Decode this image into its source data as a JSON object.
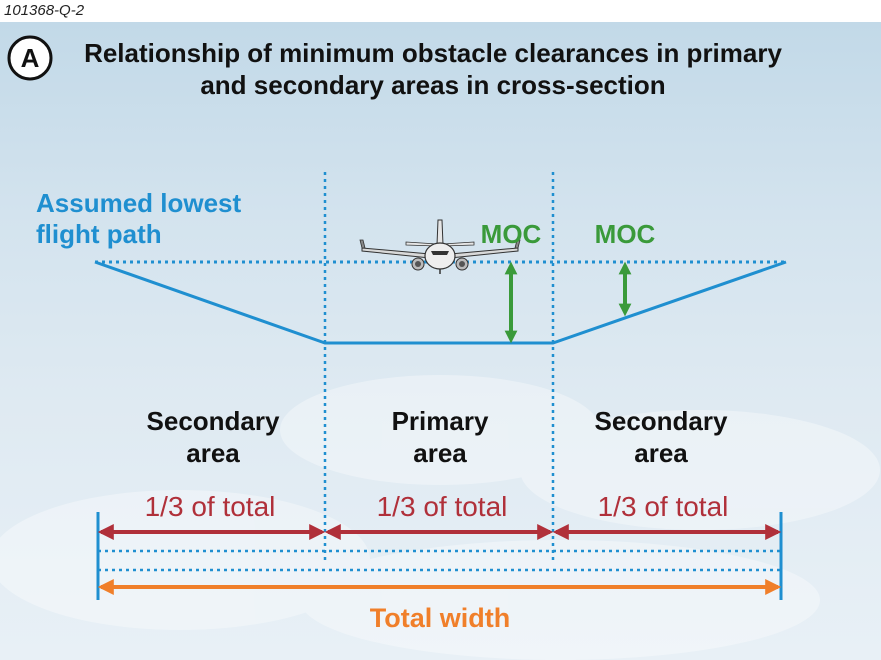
{
  "figure_id": "101368-Q-2",
  "badge": "A",
  "title": {
    "line1": "Relationship of minimum obstacle clearances in primary",
    "line2": "and secondary areas in cross-section"
  },
  "flight_path_label": {
    "line1": "Assumed lowest",
    "line2": "flight path"
  },
  "moc_labels": [
    "MOC",
    "MOC"
  ],
  "areas": [
    {
      "line1": "Secondary",
      "line2": "area",
      "fraction": "1/3 of total"
    },
    {
      "line1": "Primary",
      "line2": "area",
      "fraction": "1/3 of total"
    },
    {
      "line1": "Secondary",
      "line2": "area",
      "fraction": "1/3 of total"
    }
  ],
  "total_label": "Total width",
  "icons": {
    "badge": "circle-letter-icon",
    "aircraft": "airplane-front-icon"
  },
  "colors": {
    "flight_path": "#1f8fd0",
    "moc": "#3a9a3a",
    "area_fraction": "#b0303a",
    "total_width": "#f07f2a",
    "text": "#111111"
  }
}
